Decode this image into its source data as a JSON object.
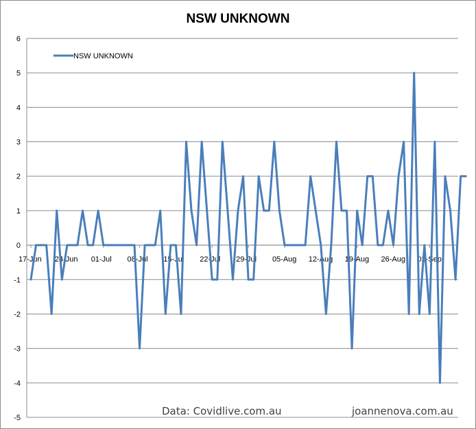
{
  "chart_data": {
    "type": "line",
    "title": "NSW UNKNOWN",
    "xlabel": "",
    "ylabel": "",
    "ylim": [
      -5,
      6
    ],
    "yticks": [
      -5,
      -4,
      -3,
      -2,
      -1,
      0,
      1,
      2,
      3,
      4,
      5,
      6
    ],
    "x_tick_labels": [
      "17-Jun",
      "24-Jun",
      "01-Jul",
      "08-Jul",
      "15-Jul",
      "22-Jul",
      "29-Jul",
      "05-Aug",
      "12-Aug",
      "19-Aug",
      "26-Aug",
      "02-Sep"
    ],
    "grid": "horizontal",
    "legend_position": "top-left",
    "series": [
      {
        "name": "NSW UNKNOWN",
        "color": "#4a7ebb",
        "start_date": "17-Jun",
        "values": [
          -1,
          0,
          0,
          0,
          -2,
          1,
          -1,
          0,
          0,
          0,
          1,
          0,
          0,
          1,
          0,
          0,
          0,
          0,
          0,
          0,
          0,
          -3,
          0,
          0,
          0,
          1,
          -2,
          0,
          0,
          -2,
          3,
          1,
          0,
          3,
          1,
          -1,
          -1,
          3,
          1,
          -1,
          1,
          2,
          -1,
          -1,
          2,
          1,
          1,
          3,
          1,
          0,
          0,
          0,
          0,
          0,
          2,
          1,
          0,
          -2,
          0,
          3,
          1,
          1,
          -3,
          1,
          0,
          2,
          2,
          0,
          0,
          1,
          0,
          2,
          3,
          -2,
          5,
          -2,
          0,
          -2,
          3,
          -4,
          2,
          1,
          -1,
          2,
          2
        ]
      }
    ]
  },
  "annotations": {
    "source": "Data: Covidlive.com.au",
    "site": "joannenova.com.au"
  }
}
